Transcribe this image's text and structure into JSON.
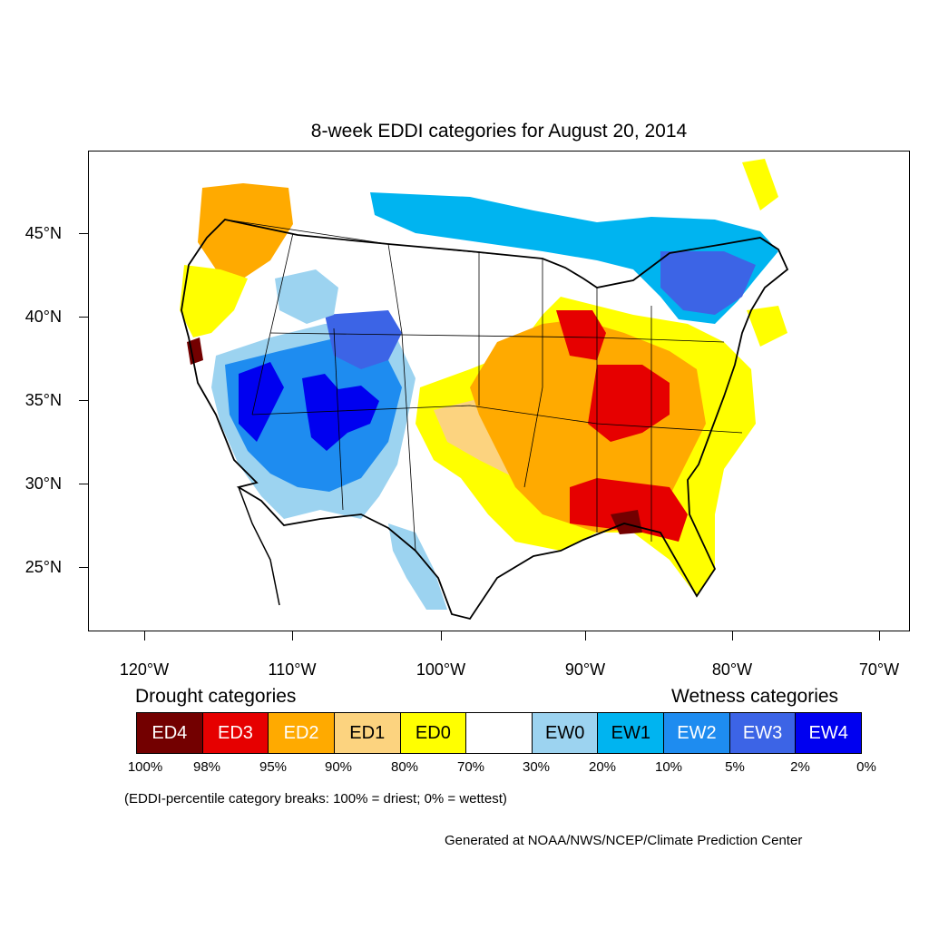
{
  "title": "8-week EDDI categories for August 20, 2014",
  "axes": {
    "lat_labels": [
      "45°N",
      "40°N",
      "35°N",
      "30°N",
      "25°N"
    ],
    "lon_labels": [
      "120°W",
      "110°W",
      "100°W",
      "90°W",
      "80°W",
      "70°W"
    ]
  },
  "legend": {
    "drought_title": "Drought categories",
    "wetness_title": "Wetness categories",
    "categories": [
      {
        "label": "ED4",
        "color": "#730000",
        "text_color": "#ffffff"
      },
      {
        "label": "ED3",
        "color": "#e60000",
        "text_color": "#ffffff"
      },
      {
        "label": "ED2",
        "color": "#ffaa00",
        "text_color": "#ffffff"
      },
      {
        "label": "ED1",
        "color": "#fcd37f",
        "text_color": "#000000"
      },
      {
        "label": "ED0",
        "color": "#ffff00",
        "text_color": "#000000"
      },
      {
        "label": "",
        "color": "#ffffff",
        "text_color": "#000000"
      },
      {
        "label": "EW0",
        "color": "#9cd3f0",
        "text_color": "#000000"
      },
      {
        "label": "EW1",
        "color": "#00b4f0",
        "text_color": "#000000"
      },
      {
        "label": "EW2",
        "color": "#1e8cf0",
        "text_color": "#ffffff"
      },
      {
        "label": "EW3",
        "color": "#3c64e6",
        "text_color": "#ffffff"
      },
      {
        "label": "EW4",
        "color": "#0000f0",
        "text_color": "#ffffff"
      }
    ],
    "breaks": [
      "100%",
      "98%",
      "95%",
      "90%",
      "80%",
      "70%",
      "30%",
      "20%",
      "10%",
      "5%",
      "2%",
      "0%"
    ]
  },
  "note": "(EDDI-percentile category breaks: 100% = driest; 0% = wettest)",
  "credit": "Generated at NOAA/NWS/NCEP/Climate Prediction Center"
}
